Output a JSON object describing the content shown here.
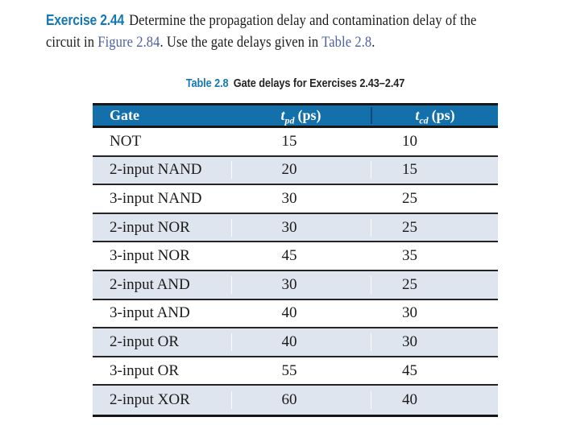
{
  "exercise": {
    "label": "Exercise 2.44",
    "line1_text": "Determine the propagation delay and contamination delay of the",
    "line2_prefix": "circuit in ",
    "figure_ref": "Figure 2.84",
    "line2_middle": ". Use the gate delays given in ",
    "table_ref": "Table 2.8",
    "line2_suffix": "."
  },
  "table": {
    "title_label": "Table 2.8",
    "title_text": "Gate delays for Exercises 2.43–2.47",
    "header": {
      "gate": "Gate",
      "tpd_symbol": "t",
      "tpd_sub": "pd",
      "tpd_unit": "(ps)",
      "tcd_symbol": "t",
      "tcd_sub": "cd",
      "tcd_unit": "(ps)"
    },
    "rows": [
      {
        "gate": "NOT",
        "tpd": "15",
        "tcd": "10"
      },
      {
        "gate": "2-input NAND",
        "tpd": "20",
        "tcd": "15"
      },
      {
        "gate": "3-input NAND",
        "tpd": "30",
        "tcd": "25"
      },
      {
        "gate": "2-input NOR",
        "tpd": "30",
        "tcd": "25"
      },
      {
        "gate": "3-input NOR",
        "tpd": "45",
        "tcd": "35"
      },
      {
        "gate": "2-input AND",
        "tpd": "30",
        "tcd": "25"
      },
      {
        "gate": "3-input AND",
        "tpd": "40",
        "tcd": "30"
      },
      {
        "gate": "2-input OR",
        "tpd": "40",
        "tcd": "30"
      },
      {
        "gate": "3-input OR",
        "tpd": "55",
        "tcd": "45"
      },
      {
        "gate": "2-input XOR",
        "tpd": "60",
        "tcd": "40"
      }
    ]
  },
  "colors": {
    "accent_blue": "#1478b4",
    "link_blue": "#4f60a3",
    "header_bg": "#1470ab",
    "row_shade": "#dee5ee",
    "border_black": "#161616"
  }
}
